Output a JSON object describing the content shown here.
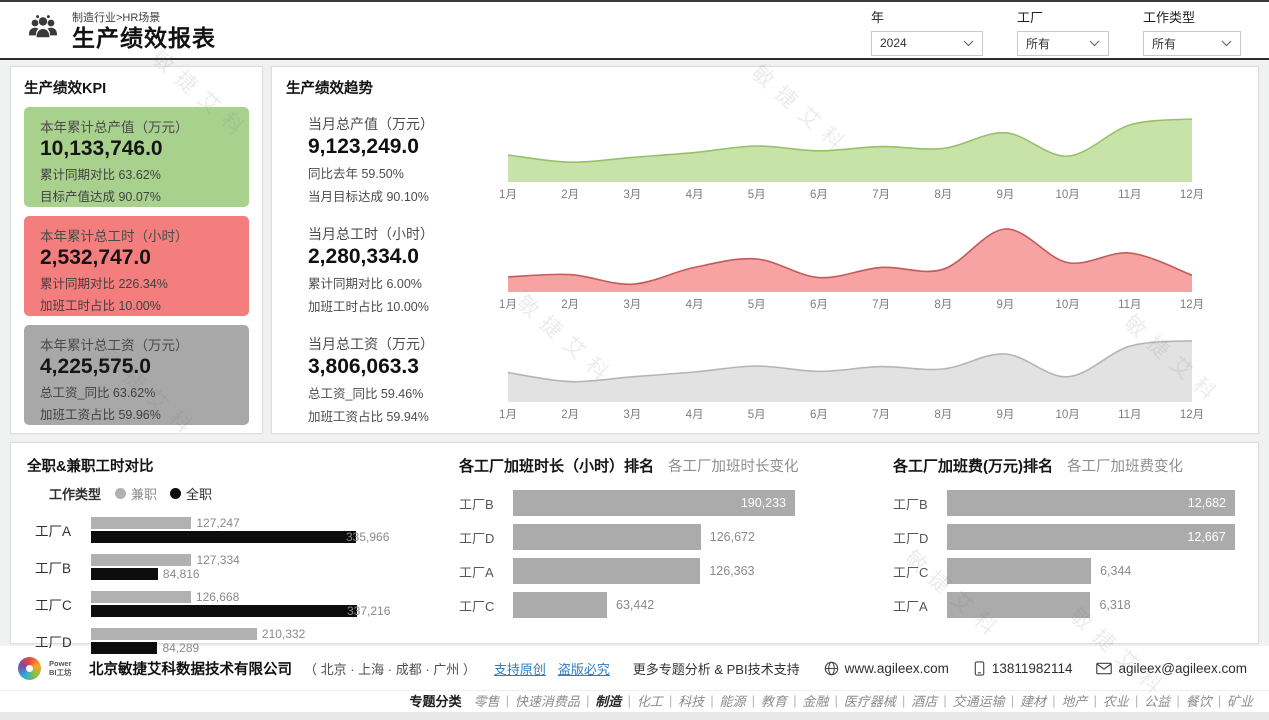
{
  "watermark": "敏捷艾科",
  "header": {
    "breadcrumb": "制造行业>HR场景",
    "title": "生产绩效报表",
    "filters": [
      {
        "label": "年",
        "value": "2024"
      },
      {
        "label": "工厂",
        "value": "所有"
      },
      {
        "label": "工作类型",
        "value": "所有"
      }
    ]
  },
  "kpi_panel": {
    "title": "生产绩效KPI",
    "cards": [
      {
        "label": "本年累计总产值（万元）",
        "value": "10,133,746.0",
        "line1": "累计同期对比 63.62%",
        "line2": "目标产值达成 90.07%",
        "color": "#a9d18e"
      },
      {
        "label": "本年累计总工时（小时）",
        "value": "2,532,747.0",
        "line1": "累计同期对比 226.34%",
        "line2": "加班工时占比 10.00%",
        "color": "#f47d7d"
      },
      {
        "label": "本年累计总工资（万元）",
        "value": "4,225,575.0",
        "line1": "总工资_同比 63.62%",
        "line2": "加班工资占比 59.96%",
        "color": "#a8a8a8"
      }
    ]
  },
  "trend_panel": {
    "title": "生产绩效趋势",
    "rows": [
      {
        "label": "当月总产值（万元）",
        "value": "9,123,249.0",
        "line1": "同比去年 59.50%",
        "line2": "当月目标达成 90.10%"
      },
      {
        "label": "当月总工时（小时）",
        "value": "2,280,334.0",
        "line1": "累计同期对比 6.00%",
        "line2": "加班工时占比 10.00%"
      },
      {
        "label": "当月总工资（万元）",
        "value": "3,806,063.3",
        "line1": "总工资_同比 59.46%",
        "line2": "加班工资占比 59.94%"
      }
    ]
  },
  "chart_data": [
    {
      "type": "area",
      "title": "当月总产值（万元）月度趋势",
      "x": [
        "1月",
        "2月",
        "3月",
        "4月",
        "5月",
        "6月",
        "7月",
        "8月",
        "9月",
        "10月",
        "11月",
        "12月"
      ],
      "values": [
        40,
        28,
        36,
        44,
        55,
        47,
        54,
        51,
        77,
        38,
        90,
        100
      ],
      "y_unit": "relative height % (y-axis unlabeled)",
      "fill_color": "#c8e3a8",
      "line_color": "#97c06c"
    },
    {
      "type": "area",
      "title": "当月总工时（小时）月度趋势",
      "x": [
        "1月",
        "2月",
        "3月",
        "4月",
        "5月",
        "6月",
        "7月",
        "8月",
        "9月",
        "10月",
        "11月",
        "12月"
      ],
      "values": [
        20,
        24,
        8,
        36,
        50,
        19,
        36,
        33,
        100,
        44,
        60,
        23
      ],
      "y_unit": "relative height % (y-axis unlabeled)",
      "fill_color": "#f7a3a3",
      "line_color": "#c45a5a"
    },
    {
      "type": "area",
      "title": "当月总工资（万元）月度趋势",
      "x": [
        "1月",
        "2月",
        "3月",
        "4月",
        "5月",
        "6月",
        "7月",
        "8月",
        "9月",
        "10月",
        "11月",
        "12月"
      ],
      "values": [
        44,
        29,
        37,
        45,
        55,
        46,
        54,
        50,
        75,
        37,
        88,
        97
      ],
      "y_unit": "relative height % (y-axis unlabeled)",
      "fill_color": "#e2e2e2",
      "line_color": "#b5b5b5"
    },
    {
      "type": "bar",
      "title": "全职&兼职工时对比",
      "orientation": "horizontal",
      "grouped": true,
      "categories": [
        "工厂A",
        "工厂B",
        "工厂C",
        "工厂D"
      ],
      "series": [
        {
          "name": "兼职",
          "color": "#b1b1b1",
          "values": [
            127247,
            127334,
            126668,
            210332
          ]
        },
        {
          "name": "全职",
          "color": "#0d0d0d",
          "values": [
            335966,
            84816,
            337216,
            84289
          ]
        }
      ],
      "legend_title": "工作类型",
      "legend_position": "top"
    },
    {
      "type": "bar",
      "title": "各工厂加班时长（小时）排名",
      "orientation": "horizontal",
      "categories": [
        "工厂B",
        "工厂D",
        "工厂A",
        "工厂C"
      ],
      "values": [
        190233,
        126672,
        126363,
        63442
      ],
      "bar_color": "#ababab"
    },
    {
      "type": "bar",
      "title": "各工厂加班费(万元)排名",
      "orientation": "horizontal",
      "categories": [
        "工厂B",
        "工厂D",
        "工厂C",
        "工厂A"
      ],
      "values": [
        12682,
        12667,
        6344,
        6318
      ],
      "bar_color": "#ababab"
    }
  ],
  "bottom": {
    "compare": {
      "title": "全职&兼职工时对比",
      "legend_title": "工作类型"
    },
    "overtime_hours": {
      "title": "各工厂加班时长（小时）排名",
      "toggle": "各工厂加班时长变化"
    },
    "overtime_pay": {
      "title": "各工厂加班费(万元)排名",
      "toggle": "各工厂加班费变化"
    }
  },
  "footer": {
    "logo_text": "Power BI工坊",
    "company": "北京敏捷艾科数据技术有限公司",
    "cities": "（ 北京 · 上海 · 成都 · 广州 ）",
    "link1": "支持原创",
    "link2": "盗版必究",
    "support": "更多专题分析 & PBI技术支持",
    "website": "www.agileex.com",
    "phone": "13811982114",
    "email": "agileex@agileex.com"
  },
  "nav": {
    "label": "专题分类",
    "active": "制造",
    "items": [
      "零售",
      "快速消费品",
      "制造",
      "化工",
      "科技",
      "能源",
      "教育",
      "金融",
      "医疗器械",
      "酒店",
      "交通运输",
      "建材",
      "地产",
      "农业",
      "公益",
      "餐饮",
      "矿业"
    ]
  }
}
